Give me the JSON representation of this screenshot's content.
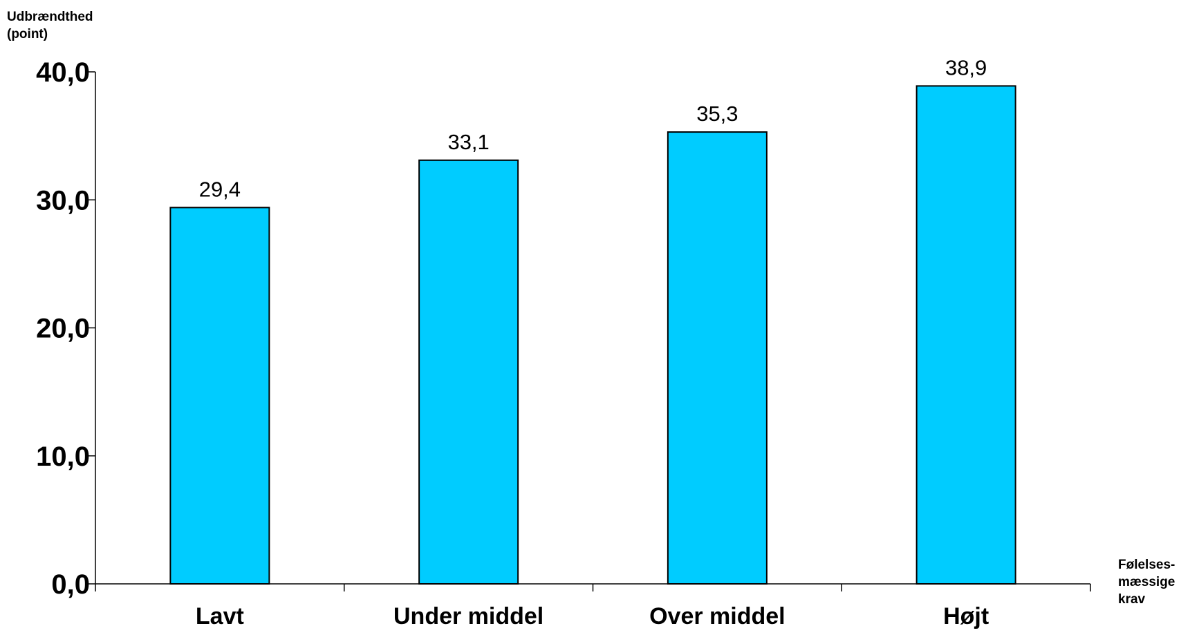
{
  "chart_data": {
    "type": "bar",
    "categories": [
      "Lavt",
      "Under middel",
      "Over middel",
      "Højt"
    ],
    "values": [
      29.4,
      33.1,
      35.3,
      38.9
    ],
    "data_labels": [
      "29,4",
      "33,1",
      "35,3",
      "38,9"
    ],
    "ylabel_lines": [
      "Udbrændthed",
      "(point)"
    ],
    "xlabel_lines": [
      "Følelses-",
      "mæssige",
      "krav"
    ],
    "ylim": [
      0,
      40
    ],
    "yticks": [
      0,
      10,
      20,
      30,
      40
    ],
    "ytick_labels": [
      "0,0",
      "10,0",
      "20,0",
      "30,0",
      "40,0"
    ],
    "grid": false,
    "bar_color": "#00CCFF",
    "bar_edge_color": "#000000"
  }
}
